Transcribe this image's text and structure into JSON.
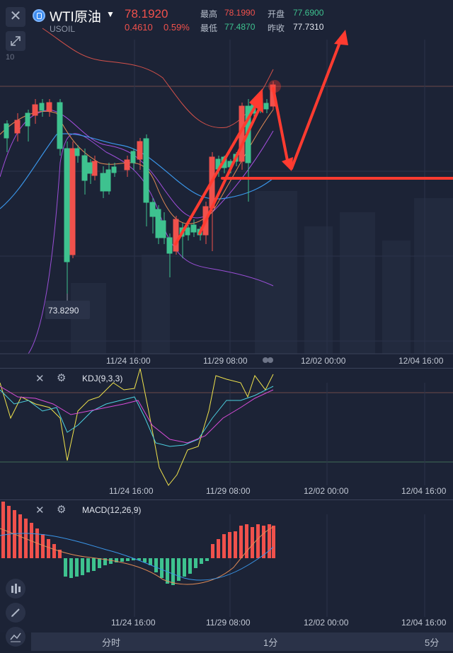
{
  "header": {
    "symbol_name": "WTI原油",
    "symbol_code": "USOIL",
    "price": "78.1920",
    "change": "0.4610",
    "change_pct": "0.59%",
    "high_label": "最高",
    "high": "78.1990",
    "low_label": "最低",
    "low": "77.4870",
    "open_label": "开盘",
    "open": "77.6900",
    "prev_close_label": "昨收",
    "prev_close": "77.7310"
  },
  "main_chart": {
    "low_marker": "73.8290",
    "axis_labels": [
      "11/24 16:00",
      "11/29 08:00",
      "12/02 00:00",
      "12/04 16:00"
    ],
    "left_scale": "10"
  },
  "kdj": {
    "title": "KDJ(9,3,3)",
    "axis_labels": [
      "11/24 16:00",
      "11/29 08:00",
      "12/02 00:00",
      "12/04 16:00"
    ]
  },
  "macd": {
    "title": "MACD(12,26,9)",
    "axis_labels": [
      "11/24 16:00",
      "11/29 08:00",
      "12/02 00:00",
      "12/04 16:00"
    ]
  },
  "timeframe_tabs": [
    "分时",
    "1分",
    "5分"
  ],
  "colors": {
    "up": "#f0514c",
    "down": "#3ec28f",
    "background": "#1c2336",
    "accent": "#ff3b30"
  }
}
